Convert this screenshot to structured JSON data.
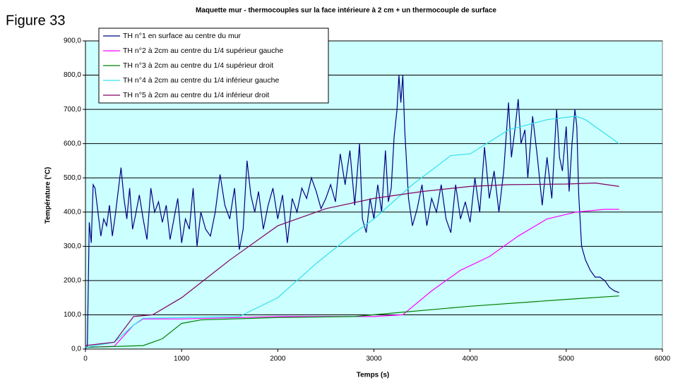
{
  "figure_label": "Figure 33",
  "chart_data": {
    "type": "line",
    "title": "Maquette mur - thermocouples sur la face intérieure à 2 cm + un thermocouple de surface",
    "xlabel": "Temps (s)",
    "ylabel": "Température (°C)",
    "xlim": [
      0,
      6000
    ],
    "xticks": [
      0,
      1000,
      2000,
      3000,
      4000,
      5000,
      6000
    ],
    "ylim": [
      0,
      900
    ],
    "yticks": [
      {
        "value": 0,
        "label": "0,0"
      },
      {
        "value": 100,
        "label": "100,0"
      },
      {
        "value": 200,
        "label": "200,0"
      },
      {
        "value": 300,
        "label": "300,0"
      },
      {
        "value": 400,
        "label": "400,0"
      },
      {
        "value": 500,
        "label": "500,0"
      },
      {
        "value": 600,
        "label": "600,0"
      },
      {
        "value": 700,
        "label": "700,0"
      },
      {
        "value": 800,
        "label": "800,0"
      },
      {
        "value": 900,
        "label": "900,0"
      }
    ],
    "grid": true,
    "legend": "upper left",
    "background": "#ccffff",
    "series": [
      {
        "name": "TH n°1 en surface au centre du mur",
        "color": "#000080",
        "x": [
          0,
          20,
          40,
          60,
          80,
          100,
          130,
          160,
          190,
          220,
          250,
          280,
          310,
          340,
          370,
          400,
          430,
          460,
          490,
          520,
          560,
          600,
          640,
          680,
          720,
          760,
          800,
          840,
          880,
          920,
          960,
          1000,
          1040,
          1080,
          1120,
          1160,
          1200,
          1250,
          1300,
          1350,
          1400,
          1450,
          1500,
          1550,
          1600,
          1640,
          1680,
          1720,
          1760,
          1800,
          1850,
          1900,
          1950,
          2000,
          2050,
          2100,
          2150,
          2200,
          2250,
          2300,
          2350,
          2400,
          2450,
          2500,
          2550,
          2600,
          2650,
          2700,
          2750,
          2800,
          2850,
          2880,
          2920,
          2960,
          3000,
          3040,
          3080,
          3120,
          3150,
          3180,
          3210,
          3240,
          3260,
          3280,
          3300,
          3320,
          3360,
          3400,
          3450,
          3500,
          3550,
          3600,
          3650,
          3700,
          3750,
          3800,
          3850,
          3900,
          3950,
          4000,
          4050,
          4100,
          4150,
          4200,
          4250,
          4300,
          4350,
          4400,
          4430,
          4470,
          4500,
          4530,
          4570,
          4600,
          4650,
          4700,
          4750,
          4800,
          4850,
          4900,
          4930,
          4960,
          5000,
          5030,
          5060,
          5090,
          5110,
          5130,
          5160,
          5200,
          5250,
          5300,
          5350,
          5400,
          5450,
          5500,
          5550
        ],
        "values": [
          0,
          10,
          370,
          310,
          480,
          470,
          400,
          330,
          380,
          360,
          420,
          330,
          390,
          460,
          530,
          440,
          380,
          470,
          350,
          390,
          450,
          380,
          320,
          470,
          400,
          430,
          370,
          420,
          320,
          380,
          440,
          310,
          380,
          350,
          470,
          300,
          400,
          350,
          330,
          400,
          510,
          420,
          380,
          470,
          290,
          350,
          550,
          450,
          400,
          460,
          350,
          420,
          470,
          380,
          450,
          310,
          440,
          400,
          470,
          440,
          500,
          460,
          410,
          440,
          480,
          430,
          570,
          480,
          580,
          420,
          600,
          380,
          340,
          440,
          380,
          480,
          400,
          580,
          430,
          470,
          620,
          700,
          800,
          720,
          800,
          640,
          440,
          360,
          410,
          480,
          360,
          440,
          400,
          480,
          380,
          340,
          480,
          380,
          430,
          370,
          500,
          400,
          590,
          440,
          520,
          400,
          520,
          720,
          560,
          650,
          730,
          600,
          640,
          500,
          680,
          560,
          420,
          560,
          440,
          700,
          560,
          520,
          650,
          460,
          600,
          700,
          650,
          450,
          300,
          260,
          230,
          210,
          210,
          200,
          180,
          170,
          165
        ]
      },
      {
        "name": "TH n°2 à 2cm au centre du 1/4 supérieur gauche",
        "color": "#ff00ff",
        "x": [
          0,
          300,
          500,
          600,
          1000,
          2000,
          3000,
          3300,
          3600,
          3900,
          4200,
          4500,
          4800,
          5100,
          5400,
          5550
        ],
        "values": [
          5,
          8,
          70,
          88,
          88,
          95,
          95,
          100,
          170,
          230,
          270,
          330,
          380,
          400,
          408,
          408
        ]
      },
      {
        "name": "TH n°3 à 2cm au centre du 1/4 supérieur droit",
        "color": "#008000",
        "x": [
          0,
          600,
          800,
          1000,
          1200,
          2000,
          2800,
          3000,
          4000,
          5000,
          5550
        ],
        "values": [
          5,
          10,
          30,
          75,
          85,
          92,
          95,
          100,
          125,
          145,
          155
        ]
      },
      {
        "name": "TH n°4 à 2cm au centre du 1/4 inférieur gauche",
        "color": "#33e0ee",
        "x": [
          0,
          300,
          500,
          600,
          1600,
          2000,
          2400,
          2800,
          3000,
          3400,
          3800,
          4000,
          4400,
          4800,
          5100,
          5200,
          5550
        ],
        "values": [
          5,
          20,
          70,
          90,
          95,
          150,
          250,
          340,
          380,
          480,
          565,
          570,
          640,
          670,
          680,
          670,
          600
        ]
      },
      {
        "name": "TH n°5 à 2cm au centre du 1/4 inférieur droit",
        "color": "#800060",
        "x": [
          0,
          300,
          500,
          700,
          1000,
          1500,
          2000,
          2500,
          3000,
          3500,
          4000,
          4400,
          5000,
          5300,
          5550
        ],
        "values": [
          10,
          20,
          95,
          100,
          150,
          260,
          360,
          410,
          440,
          460,
          475,
          480,
          482,
          485,
          475
        ]
      }
    ]
  }
}
